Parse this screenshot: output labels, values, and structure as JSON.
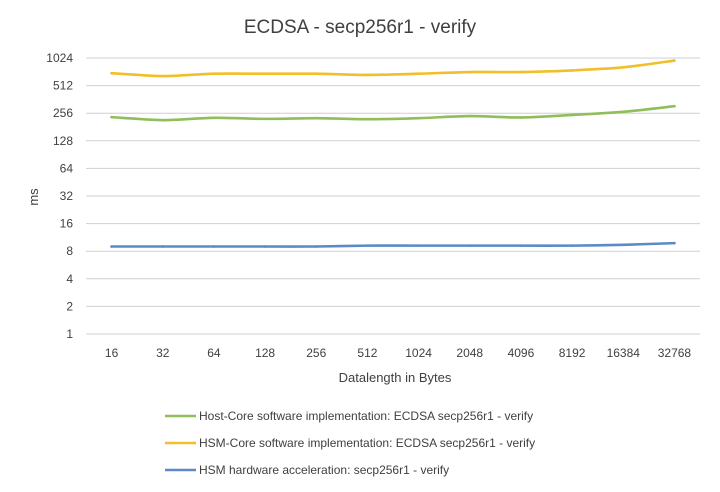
{
  "chart_data": {
    "type": "line",
    "title": "ECDSA - secp256r1 - verify",
    "xlabel": "Datalength in Bytes",
    "ylabel": "ms",
    "yscale": "log2",
    "ylim": [
      1,
      1024
    ],
    "yticks": [
      "1",
      "2",
      "4",
      "8",
      "16",
      "32",
      "64",
      "128",
      "256",
      "512",
      "1024"
    ],
    "categories": [
      "16",
      "32",
      "64",
      "128",
      "256",
      "512",
      "1024",
      "2048",
      "4096",
      "8192",
      "16384",
      "32768"
    ],
    "grid": true,
    "legend_position": "bottom",
    "series": [
      {
        "name": "Host-Core software implementation: ECDSA secp256r1 - verify",
        "color": "#8fbe5a",
        "values": [
          232,
          215,
          228,
          222,
          226,
          220,
          226,
          238,
          230,
          245,
          265,
          305
        ]
      },
      {
        "name": "HSM-Core software implementation: ECDSA secp256r1 - verify",
        "color": "#f2bf2a",
        "values": [
          700,
          650,
          690,
          690,
          690,
          670,
          690,
          720,
          720,
          750,
          810,
          960
        ]
      },
      {
        "name": "HSM hardware acceleration: secp256r1 - verify",
        "color": "#5b8ac6",
        "values": [
          9.0,
          9.0,
          9.0,
          9.0,
          9.0,
          9.2,
          9.2,
          9.2,
          9.2,
          9.2,
          9.4,
          9.8
        ]
      }
    ]
  }
}
